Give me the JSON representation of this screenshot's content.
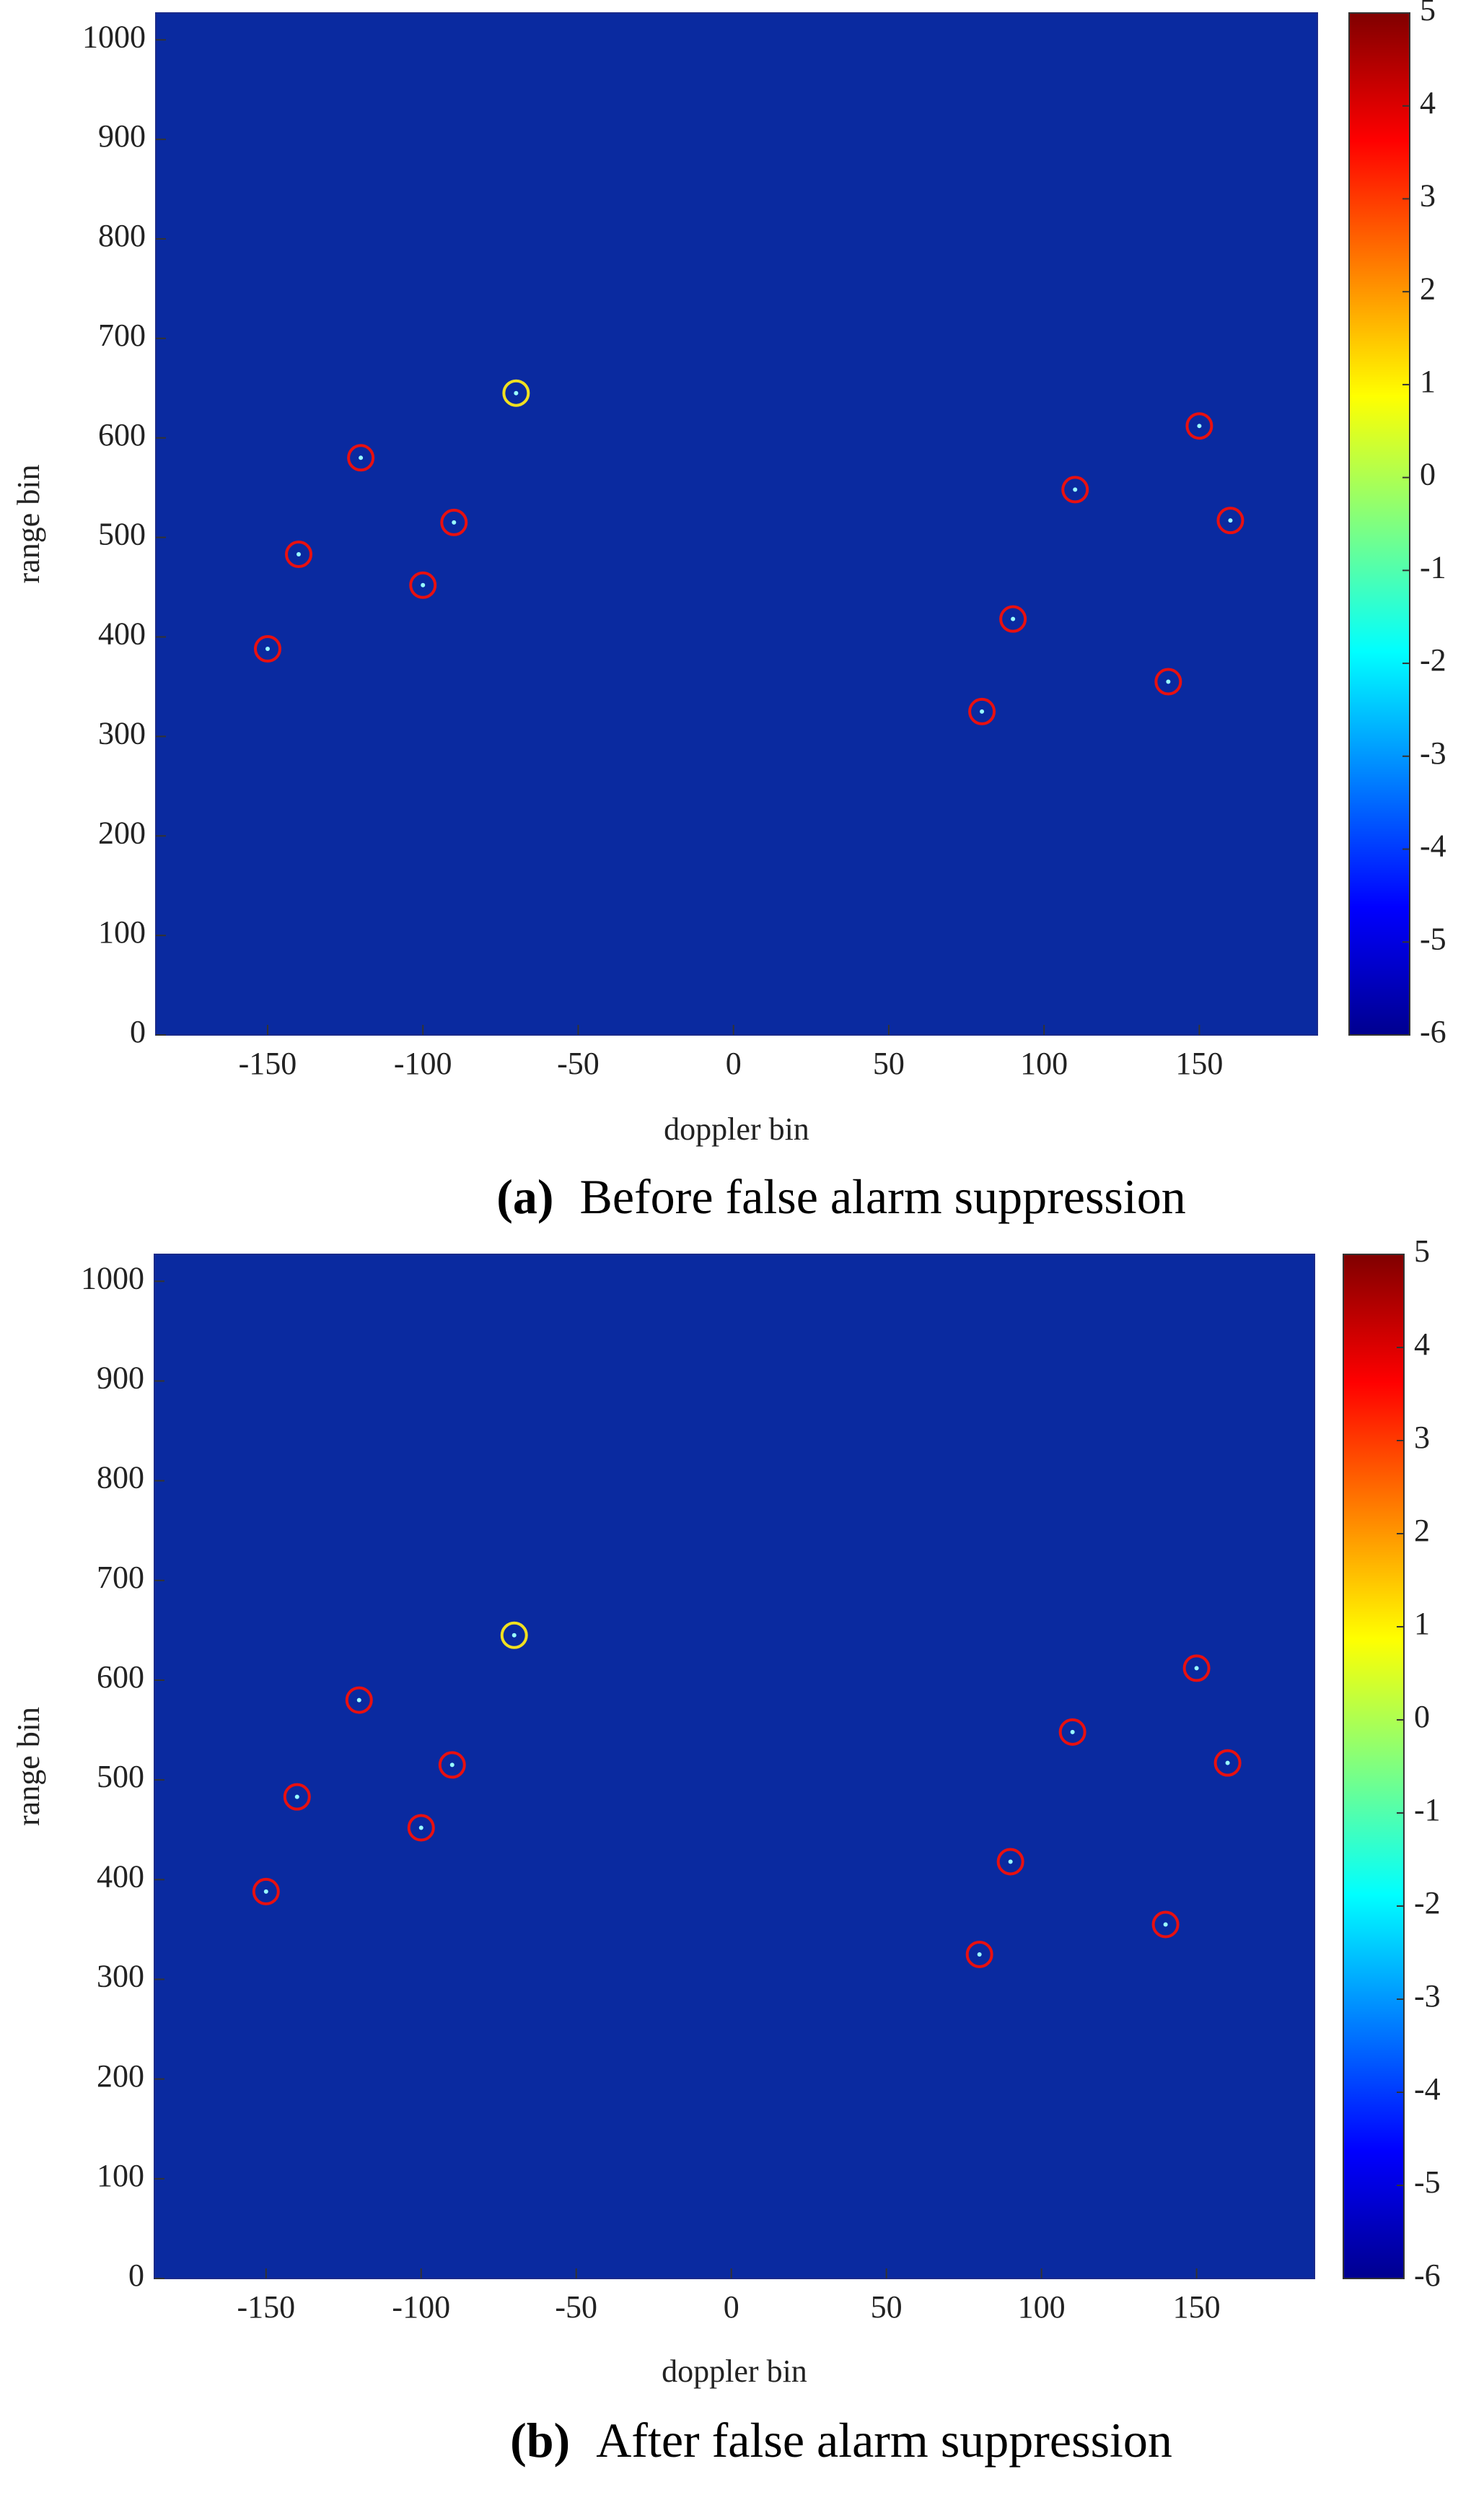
{
  "chart_data": [
    {
      "type": "heatmap",
      "label": "(a)",
      "caption": "Before false alarm suppression",
      "xlabel": "doppler bin",
      "ylabel": "range bin",
      "xlim": [
        -186,
        188
      ],
      "ylim": [
        0,
        1027
      ],
      "xticks": [
        -150,
        -100,
        -50,
        0,
        50,
        100,
        150
      ],
      "yticks": [
        0,
        100,
        200,
        300,
        400,
        500,
        600,
        700,
        800,
        900,
        1000
      ],
      "background": "#0a2aa0",
      "colorbar": {
        "lim": [
          -6,
          5
        ],
        "ticks": [
          -6,
          -5,
          -4,
          -3,
          -2,
          -1,
          0,
          1,
          2,
          3,
          4,
          5
        ]
      },
      "targets": {
        "color": "#e81010",
        "x": [
          -150,
          -140,
          -120,
          -100,
          -90,
          80,
          90,
          110,
          140,
          150,
          160
        ],
        "y": [
          388,
          483,
          580,
          452,
          515,
          325,
          418,
          548,
          355,
          612,
          517
        ]
      },
      "reference": {
        "color": "#f0e020",
        "x": [
          -70
        ],
        "y": [
          645
        ]
      }
    },
    {
      "type": "heatmap",
      "label": "(b)",
      "caption": "After false alarm suppression",
      "xlabel": "doppler bin",
      "ylabel": "range bin",
      "xlim": [
        -186,
        188
      ],
      "ylim": [
        0,
        1027
      ],
      "xticks": [
        -150,
        -100,
        -50,
        0,
        50,
        100,
        150
      ],
      "yticks": [
        0,
        100,
        200,
        300,
        400,
        500,
        600,
        700,
        800,
        900,
        1000
      ],
      "background": "#0a2aa0",
      "colorbar": {
        "lim": [
          -6,
          5
        ],
        "ticks": [
          -6,
          -5,
          -4,
          -3,
          -2,
          -1,
          0,
          1,
          2,
          3,
          4,
          5
        ]
      },
      "targets": {
        "color": "#e81010",
        "x": [
          -150,
          -140,
          -120,
          -100,
          -90,
          80,
          90,
          110,
          140,
          150,
          160
        ],
        "y": [
          388,
          483,
          580,
          452,
          515,
          325,
          418,
          548,
          355,
          612,
          517
        ]
      },
      "reference": {
        "color": "#f0e020",
        "x": [
          -70
        ],
        "y": [
          645
        ]
      }
    }
  ]
}
